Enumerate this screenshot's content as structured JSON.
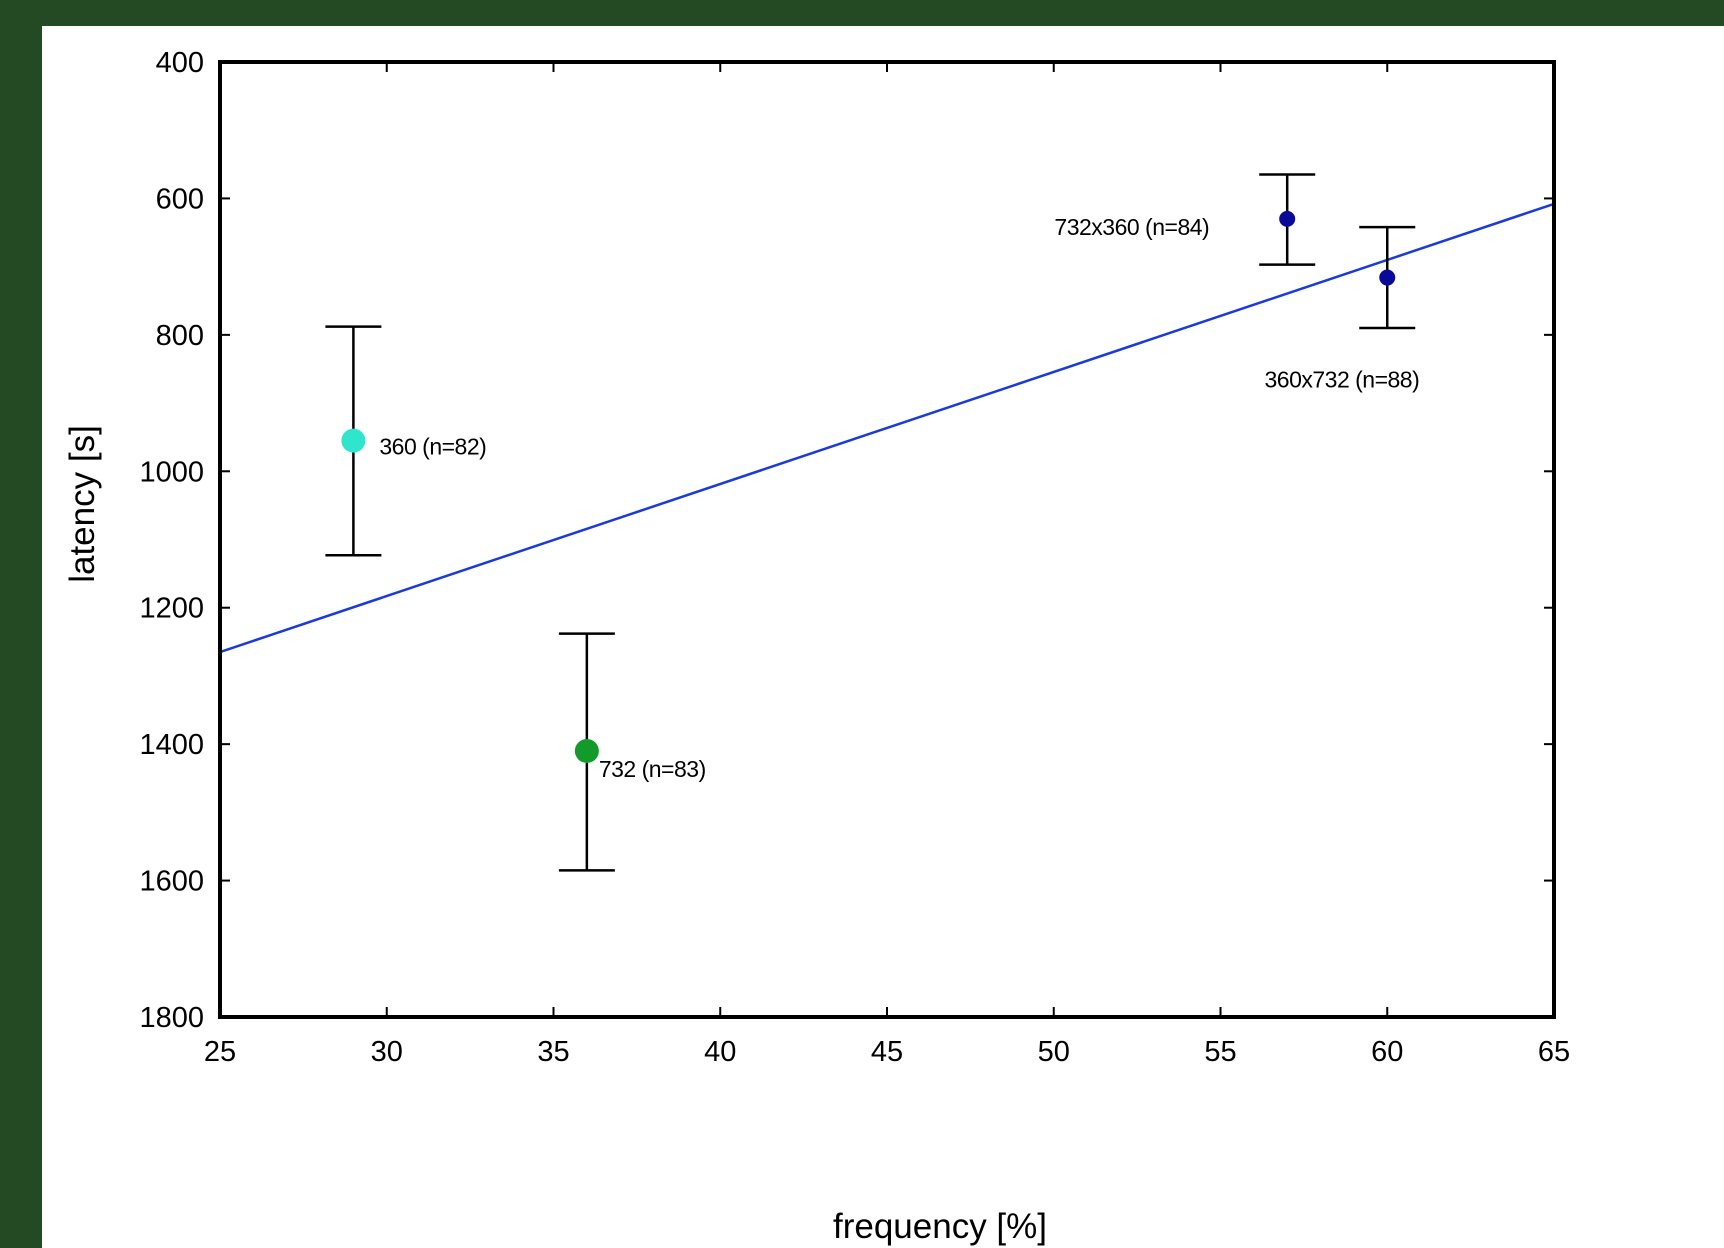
{
  "chart_data": {
    "type": "scatter",
    "title": "",
    "xlabel": "frequency [%]",
    "ylabel": "latency [s]",
    "xlim": [
      25,
      65
    ],
    "ylim": [
      400,
      1800
    ],
    "y_inverted": true,
    "xticks": [
      25,
      30,
      35,
      40,
      45,
      50,
      55,
      60,
      65
    ],
    "yticks": [
      400,
      600,
      800,
      1000,
      1200,
      1400,
      1600,
      1800
    ],
    "grid": false,
    "points": [
      {
        "label": "360 (n=82)",
        "x": 29,
        "y": 955,
        "err_low": 788,
        "err_high": 1123,
        "color": "#2ee6cc",
        "size": "large"
      },
      {
        "label": "732 (n=83)",
        "x": 36,
        "y": 1410,
        "err_low": 1238,
        "err_high": 1585,
        "color": "#129a2a",
        "size": "large"
      },
      {
        "label": "732x360 (n=84)",
        "x": 57,
        "y": 630,
        "err_low": 565,
        "err_high": 697,
        "color": "#0a0a9a",
        "size": "small"
      },
      {
        "label": "360x732 (n=88)",
        "x": 60,
        "y": 716,
        "err_low": 642,
        "err_high": 790,
        "color": "#0a0a9a",
        "size": "small"
      }
    ],
    "fit_line": {
      "x": [
        25,
        65
      ],
      "y": [
        1265,
        608
      ],
      "color": "#1a3adc"
    }
  }
}
